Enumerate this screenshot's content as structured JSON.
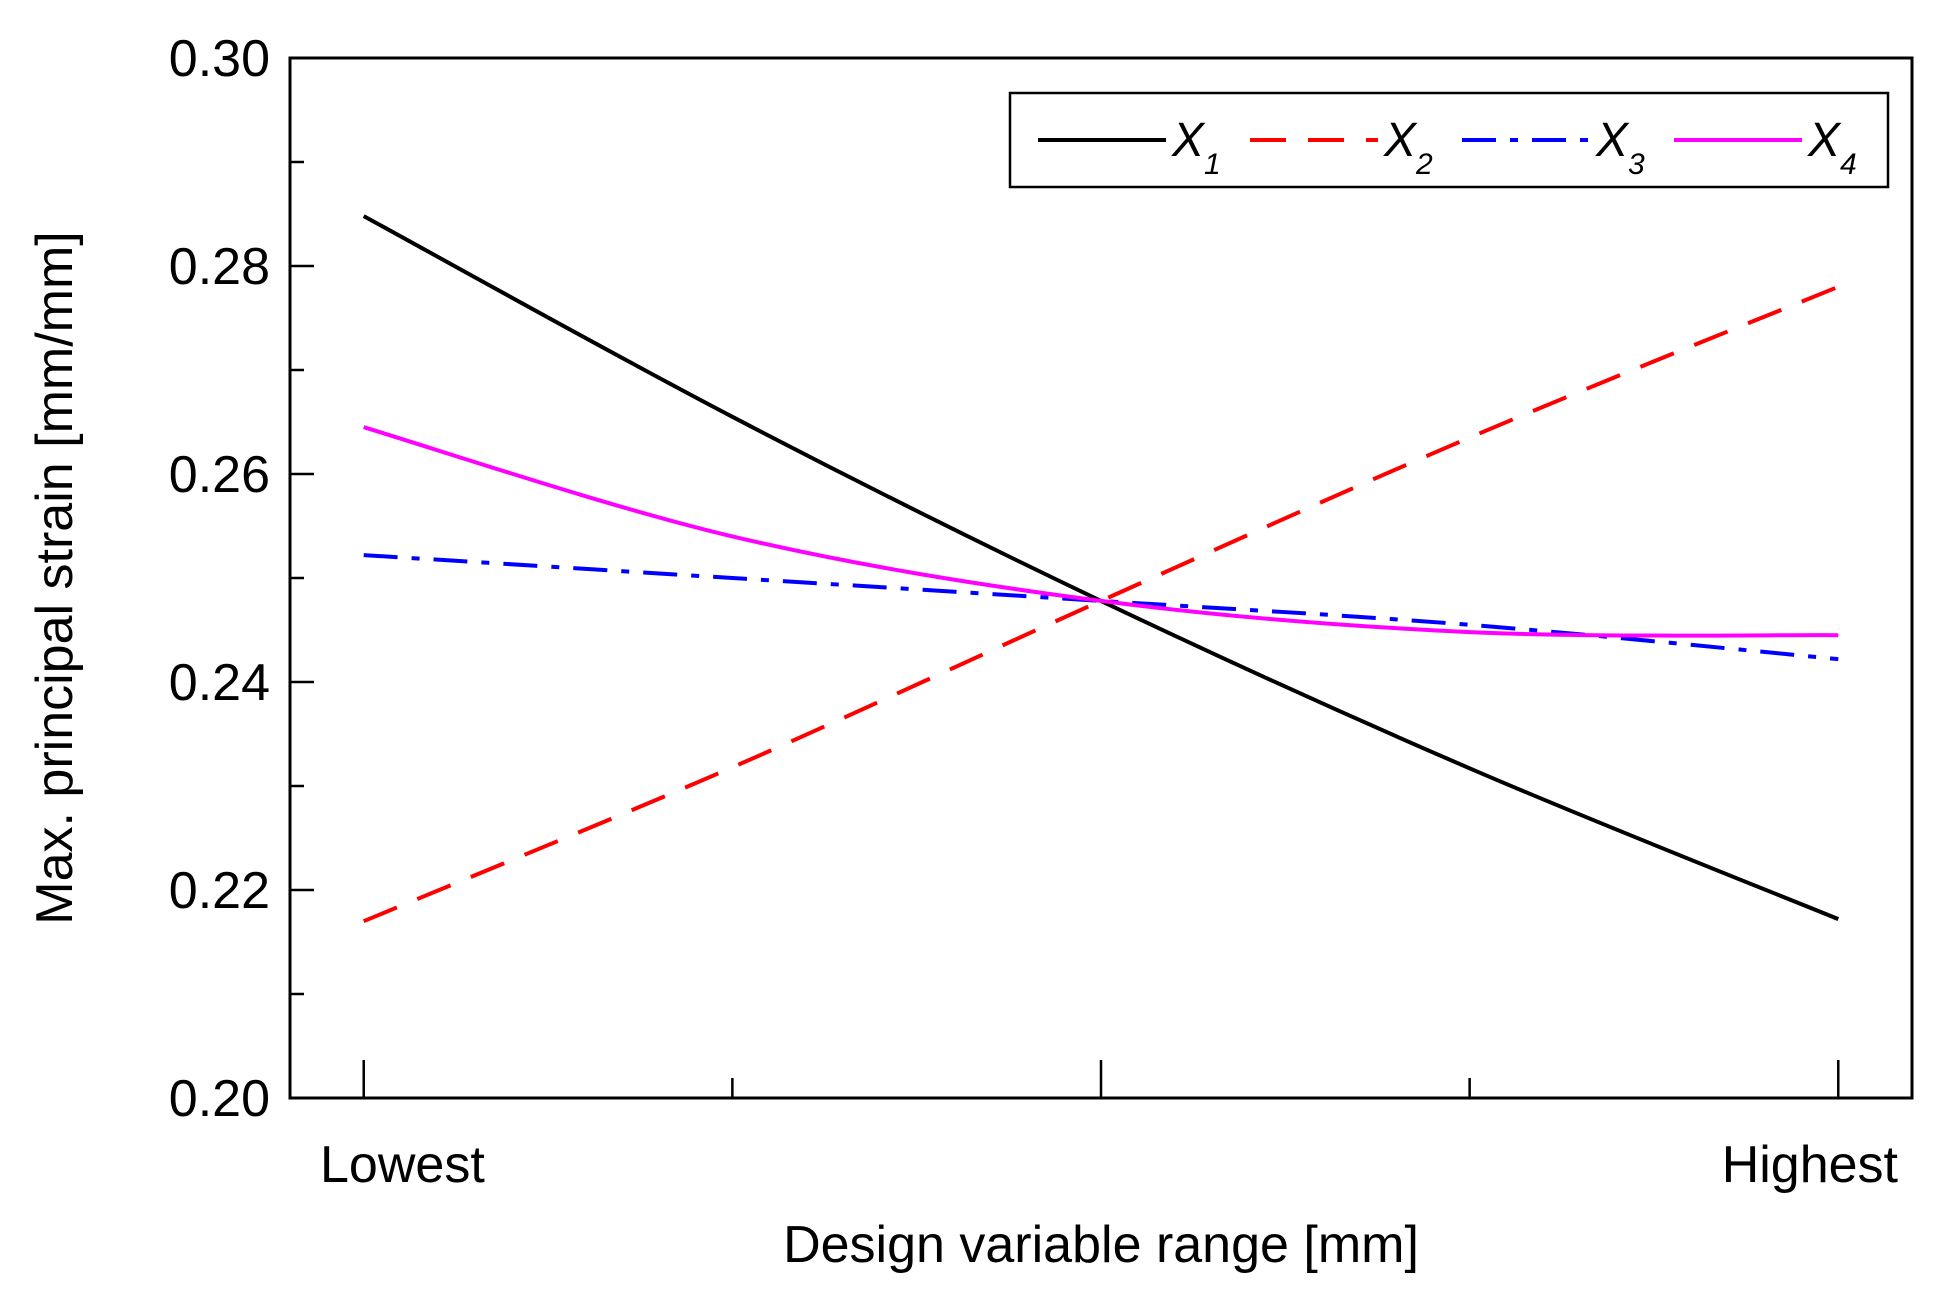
{
  "chart_data": {
    "type": "line",
    "xlabel": "Design variable range [mm]",
    "ylabel": "Max. principal strain [mm/mm]",
    "x_tick_labels": [
      "Lowest",
      "",
      "",
      "",
      "Highest"
    ],
    "x": [
      0,
      0.25,
      0.5,
      0.75,
      1
    ],
    "xlim": [
      -0.05,
      1.05
    ],
    "ylim": [
      0.2,
      0.3
    ],
    "y_ticks": [
      "0.20",
      "0.22",
      "0.24",
      "0.26",
      "0.28",
      "0.30"
    ],
    "y_minor_step": 0.01,
    "grid": false,
    "legend_position": "top-right",
    "series": [
      {
        "name": "X",
        "subscript": "1",
        "color": "#000000",
        "dash": "solid",
        "values": [
          0.2848,
          0.2655,
          0.2478,
          0.2317,
          0.2172
        ]
      },
      {
        "name": "X",
        "subscript": "2",
        "color": "#ff0000",
        "dash": "dashed",
        "values": [
          0.217,
          0.2318,
          0.2478,
          0.2635,
          0.278
        ]
      },
      {
        "name": "X",
        "subscript": "3",
        "color": "#0000ff",
        "dash": "dashdot",
        "values": [
          0.2522,
          0.25,
          0.2478,
          0.2455,
          0.2422
        ]
      },
      {
        "name": "X",
        "subscript": "4",
        "color": "#ff00ff",
        "dash": "solid",
        "values": [
          0.2645,
          0.254,
          0.2478,
          0.2448,
          0.2445
        ]
      }
    ]
  }
}
